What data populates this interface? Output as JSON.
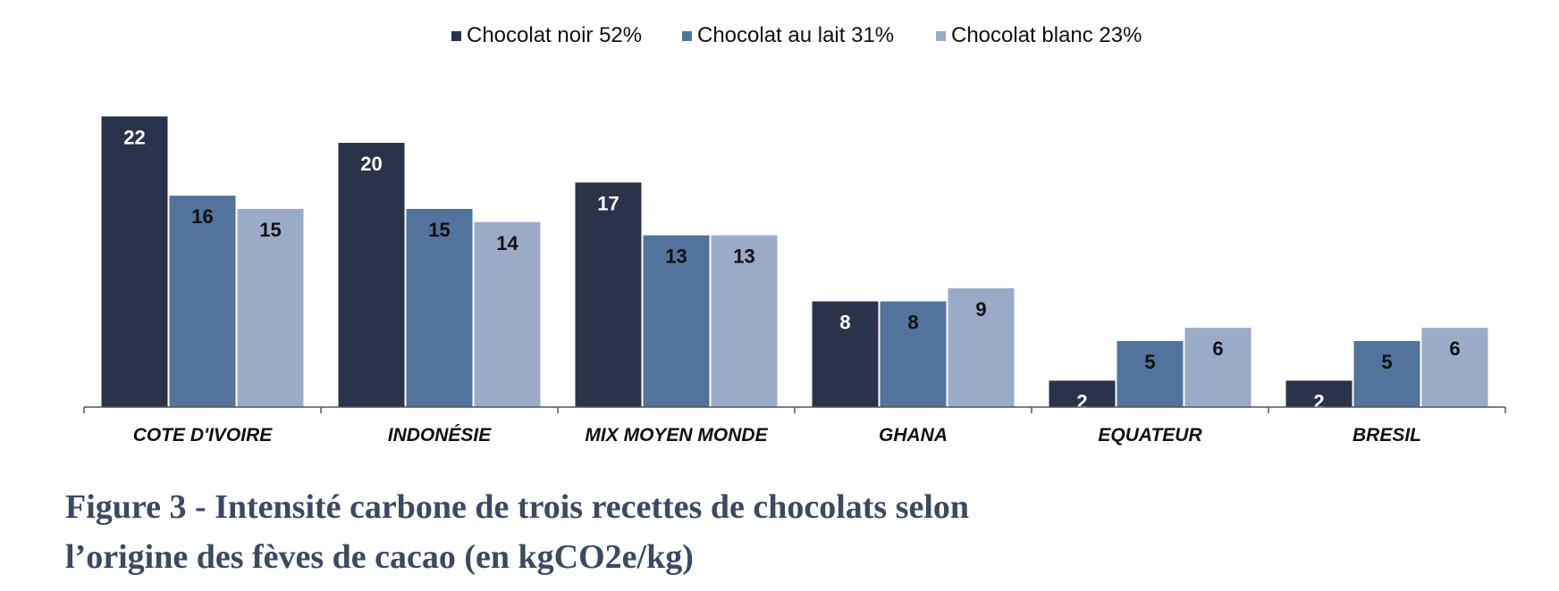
{
  "chart_data": {
    "type": "bar",
    "categories": [
      "COTE D'IVOIRE",
      "INDONÉSIE",
      "MIX MOYEN MONDE",
      "GHANA",
      "EQUATEUR",
      "BRESIL"
    ],
    "series": [
      {
        "name": "Chocolat noir 52%",
        "color": "#29344a",
        "values": [
          22,
          20,
          17,
          8,
          2,
          2
        ]
      },
      {
        "name": "Chocolat au lait 31%",
        "color": "#52739b",
        "values": [
          16,
          15,
          13,
          8,
          5,
          5
        ]
      },
      {
        "name": "Chocolat blanc 23%",
        "color": "#9aabc8",
        "values": [
          15,
          14,
          13,
          9,
          6,
          6
        ]
      }
    ],
    "data_labels": [
      [
        "22",
        "20",
        "17",
        "8",
        "2",
        "2"
      ],
      [
        "16",
        "15",
        "13",
        "8",
        "5",
        "5"
      ],
      [
        "15",
        "14",
        "13",
        "9",
        "6",
        "6"
      ]
    ],
    "ylim": [
      0,
      24
    ],
    "grid": false,
    "legend": "top-center",
    "xlabel": "",
    "ylabel": ""
  },
  "caption": {
    "line1": "Figure 3 - Intensité carbone de trois recettes de chocolats selon",
    "line2": "l’origine des fèves de cacao (en kgCO2e/kg)"
  }
}
